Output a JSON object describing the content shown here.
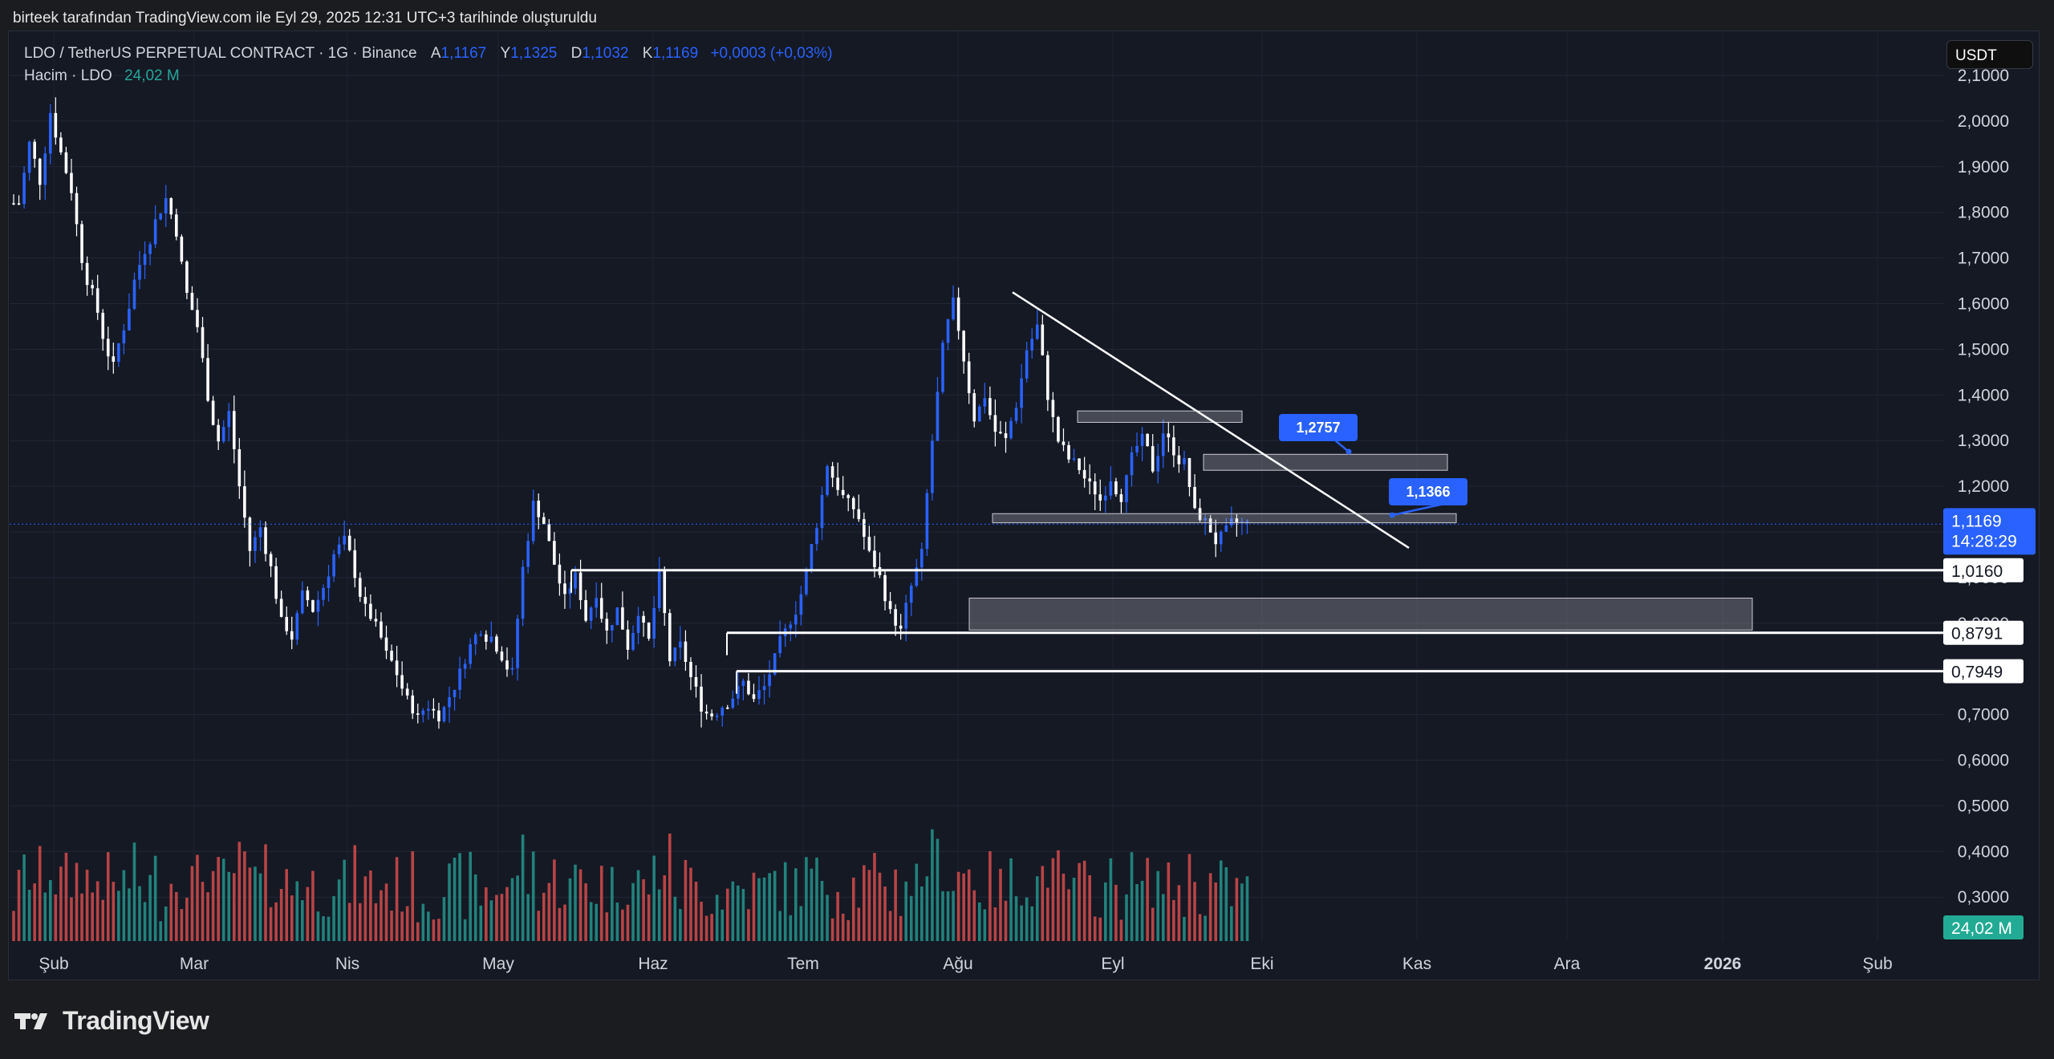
{
  "header": {
    "attribution": "birteek tarafından TradingView.com ile Eyl 29, 2025 12:31 UTC+3 tarihinde oluşturuldu"
  },
  "legend": {
    "symbol": "LDO / TetherUS PERPETUAL CONTRACT · 1G · Binance",
    "o_label": "A",
    "o_value": "1,1167",
    "h_label": "Y",
    "h_value": "1,1325",
    "l_label": "D",
    "l_value": "1,1032",
    "c_label": "K",
    "c_value": "1,1169",
    "change": "+0,0003 (+0,03%)",
    "volume_label": "Hacim · LDO",
    "volume_value": "24,02 M"
  },
  "currency_button": "USDT",
  "footer": {
    "brand": "TradingView"
  },
  "colors": {
    "up": "#2962ff",
    "down": "#ffffff",
    "vol_up": "#26a69a",
    "vol_down": "#ef5350",
    "price_tag": "#2962ff",
    "callout": "#2962ff"
  },
  "chart_data": {
    "type": "candlestick",
    "price_axis_ticks": [
      "2,1000",
      "2,0000",
      "1,9000",
      "1,8000",
      "1,7000",
      "1,6000",
      "1,5000",
      "1,4000",
      "1,3000",
      "1,2000",
      "1,1000",
      "1,0000",
      "0,9000",
      "0,8000",
      "0,7000",
      "0,6000",
      "0,5000",
      "0,4000",
      "0,3000"
    ],
    "x_axis_ticks": [
      "Şub",
      "Mar",
      "Nis",
      "May",
      "Haz",
      "Tem",
      "Ağu",
      "Eyl",
      "Eki",
      "Kas",
      "Ara",
      "2026",
      "Şub"
    ],
    "last_price": "1,1169",
    "countdown": "14:28:29",
    "volume_tag": "24,02 M",
    "horizontal_lines": [
      {
        "label": "1,0160",
        "price": 1.016
      },
      {
        "label": "0,8791",
        "price": 0.8791
      },
      {
        "label": "0,7949",
        "price": 0.7949
      }
    ],
    "callouts": [
      {
        "label": "1,2757",
        "price": 1.2757
      },
      {
        "label": "1,1366",
        "price": 1.1366
      }
    ],
    "zones": [
      {
        "top": 1.365,
        "bottom": 1.34
      },
      {
        "top": 1.27,
        "bottom": 1.235
      },
      {
        "top": 1.14,
        "bottom": 1.12
      },
      {
        "top": 0.955,
        "bottom": 0.885
      }
    ],
    "trendline": {
      "from_price": 1.625,
      "to_price": 1.065
    },
    "close_path": [
      1.82,
      1.95,
      1.87,
      2.02,
      1.93,
      1.85,
      1.7,
      1.62,
      1.53,
      1.46,
      1.55,
      1.65,
      1.72,
      1.78,
      1.83,
      1.76,
      1.62,
      1.55,
      1.4,
      1.3,
      1.36,
      1.2,
      1.06,
      1.11,
      1.02,
      0.9,
      0.87,
      0.96,
      0.93,
      0.98,
      1.05,
      1.08,
      1.01,
      0.93,
      0.89,
      0.83,
      0.79,
      0.73,
      0.69,
      0.72,
      0.7,
      0.74,
      0.79,
      0.85,
      0.89,
      0.87,
      0.83,
      0.79,
      1.02,
      1.16,
      1.12,
      1.03,
      0.95,
      1.0,
      0.91,
      0.97,
      0.88,
      0.93,
      0.85,
      0.93,
      0.86,
      1.0,
      0.82,
      0.85,
      0.78,
      0.72,
      0.7,
      0.72,
      0.74,
      0.77,
      0.73,
      0.76,
      0.82,
      0.88,
      0.93,
      1.01,
      1.12,
      1.25,
      1.2,
      1.16,
      1.13,
      1.05,
      1.0,
      0.92,
      0.88,
      0.98,
      1.05,
      1.3,
      1.5,
      1.6,
      1.48,
      1.35,
      1.4,
      1.32,
      1.3,
      1.38,
      1.5,
      1.55,
      1.4,
      1.3,
      1.26,
      1.24,
      1.2,
      1.17,
      1.22,
      1.18,
      1.26,
      1.3,
      1.24,
      1.32,
      1.28,
      1.25,
      1.14,
      1.12,
      1.08,
      1.1,
      1.12,
      1.117
    ]
  }
}
